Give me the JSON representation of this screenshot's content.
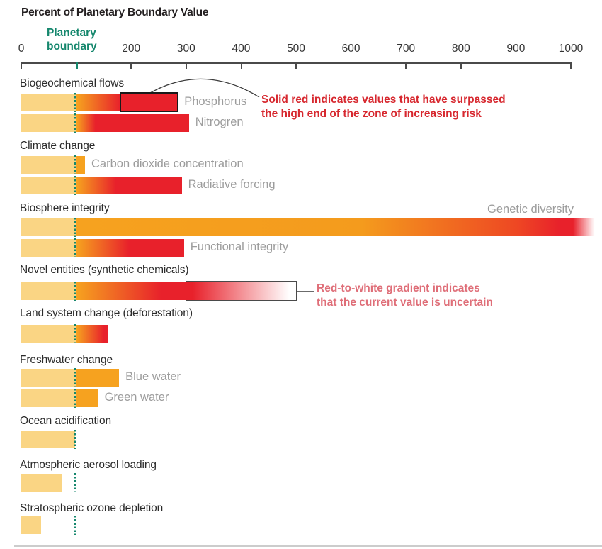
{
  "title": "Percent of Planetary Boundary Value",
  "axis": {
    "min": 0,
    "max": 1000,
    "boundary_value": 100,
    "boundary_label": "Planetary\nboundary",
    "boundary_color": "#15876D",
    "ticks": [
      {
        "value": 0,
        "label": "0"
      },
      {
        "value": 100,
        "label": ""
      },
      {
        "value": 200,
        "label": "200"
      },
      {
        "value": 300,
        "label": "300"
      },
      {
        "value": 400,
        "label": "400"
      },
      {
        "value": 500,
        "label": "500"
      },
      {
        "value": 600,
        "label": "600"
      },
      {
        "value": 700,
        "label": "700"
      },
      {
        "value": 800,
        "label": "800"
      },
      {
        "value": 900,
        "label": "900"
      },
      {
        "value": 1000,
        "label": "1000"
      }
    ]
  },
  "colors": {
    "safe_yellow": "#FAD584",
    "risk_orange": "#F6A21F",
    "surpass_red": "#E8212B",
    "uncertain_white": "#FFFFFF",
    "boundary_teal": "#15876D",
    "note_red": "#D7282F",
    "note_pink": "#DF6E78",
    "bar_label_gray": "#9C9C9C",
    "text_dark": "#2B2B2B"
  },
  "annotations": {
    "solid_red": {
      "lines": [
        "Solid red indicates values that have surpassed",
        "the high end of the zone of increasing risk"
      ],
      "color": "#D7282F"
    },
    "uncertain": {
      "lines": [
        "Red-to-white gradient indicates",
        "that the current value is uncertain"
      ],
      "color": "#DF6E78"
    }
  },
  "chart_data": {
    "type": "bar",
    "title": "Percent of Planetary Boundary Value",
    "xlabel": "Percent of planetary boundary value",
    "xlim": [
      0,
      1000
    ],
    "boundary_value": 100,
    "grid": false,
    "groups": [
      {
        "label": "Biogeochemical flows",
        "bars": [
          {
            "name": "Phosphorus",
            "value": 285,
            "solid_red_from": 180,
            "outlined": true,
            "stops": [
              [
                0,
                "#FAD584"
              ],
              [
                99,
                "#FAD584"
              ],
              [
                101,
                "#F6A21F"
              ],
              [
                180,
                "#E8212B"
              ],
              [
                285,
                "#E8212B"
              ]
            ]
          },
          {
            "name": "Nitrogren",
            "value": 305,
            "solid_red_from": 135,
            "stops": [
              [
                0,
                "#FAD584"
              ],
              [
                99,
                "#FAD584"
              ],
              [
                101,
                "#F6A21F"
              ],
              [
                135,
                "#E8212B"
              ],
              [
                305,
                "#E8212B"
              ]
            ]
          }
        ]
      },
      {
        "label": "Climate change",
        "bars": [
          {
            "name": "Carbon dioxide concentration",
            "value": 116,
            "stops": [
              [
                0,
                "#FAD584"
              ],
              [
                99,
                "#FAD584"
              ],
              [
                101,
                "#F6A21F"
              ],
              [
                116,
                "#F6A21F"
              ]
            ]
          },
          {
            "name": "Radiative forcing",
            "value": 292,
            "solid_red_from": 172,
            "stops": [
              [
                0,
                "#FAD584"
              ],
              [
                99,
                "#FAD584"
              ],
              [
                101,
                "#F6A21F"
              ],
              [
                172,
                "#E8212B"
              ],
              [
                292,
                "#E8212B"
              ]
            ]
          }
        ]
      },
      {
        "label": "Biosphere integrity",
        "bars": [
          {
            "name": "Genetic diversity",
            "value": 1045,
            "off_scale": true,
            "label_position": "above-right",
            "stops": [
              [
                0,
                "#FAD584"
              ],
              [
                99,
                "#FAD584"
              ],
              [
                101,
                "#F6A21F"
              ],
              [
                620,
                "#F49B1D"
              ],
              [
                900,
                "#EE4823"
              ],
              [
                980,
                "#E8212B"
              ],
              [
                1004,
                "#E8212B"
              ],
              [
                1043,
                "#FFFFFF"
              ]
            ]
          },
          {
            "name": "Functional integrity",
            "value": 296,
            "solid_red_from": 196,
            "stops": [
              [
                0,
                "#FAD584"
              ],
              [
                99,
                "#FAD584"
              ],
              [
                101,
                "#F6A21F"
              ],
              [
                196,
                "#E8212B"
              ],
              [
                296,
                "#E8212B"
              ]
            ]
          }
        ]
      },
      {
        "label": "Novel entities (synthetic chemicals)",
        "bars": [
          {
            "name": "",
            "value": 500,
            "uncertain_from": 300,
            "uncertain_to": 500,
            "stops": [
              [
                0,
                "#FAD584"
              ],
              [
                99,
                "#FAD584"
              ],
              [
                101,
                "#F6A21F"
              ],
              [
                255,
                "#E8212B"
              ],
              [
                312,
                "#E8212B"
              ],
              [
                488,
                "#FFFFFF"
              ],
              [
                500,
                "#FFFFFF"
              ]
            ]
          }
        ]
      },
      {
        "label": "Land system change (deforestation)",
        "bars": [
          {
            "name": "",
            "value": 158,
            "solid_red_from": 150,
            "stops": [
              [
                0,
                "#FAD584"
              ],
              [
                99,
                "#FAD584"
              ],
              [
                101,
                "#F6A21F"
              ],
              [
                150,
                "#E8212B"
              ],
              [
                158,
                "#E8212B"
              ]
            ]
          }
        ]
      },
      {
        "label": "Freshwater change",
        "bars": [
          {
            "name": "Blue water",
            "value": 178,
            "stops": [
              [
                0,
                "#FAD584"
              ],
              [
                99,
                "#FAD584"
              ],
              [
                101,
                "#F6A21F"
              ],
              [
                178,
                "#F6A21F"
              ]
            ]
          },
          {
            "name": "Green water",
            "value": 140,
            "stops": [
              [
                0,
                "#FAD584"
              ],
              [
                99,
                "#FAD584"
              ],
              [
                101,
                "#F6A21F"
              ],
              [
                140,
                "#F6A21F"
              ]
            ]
          }
        ]
      },
      {
        "label": "Ocean acidification",
        "bars": [
          {
            "name": "",
            "value": 98,
            "stops": [
              [
                0,
                "#FAD584"
              ],
              [
                98,
                "#FAD584"
              ]
            ]
          }
        ]
      },
      {
        "label": "Atmospheric aerosol loading",
        "bars": [
          {
            "name": "",
            "value": 75,
            "stops": [
              [
                0,
                "#FAD584"
              ],
              [
                75,
                "#FAD584"
              ]
            ]
          }
        ]
      },
      {
        "label": "Stratospheric ozone depletion",
        "bars": [
          {
            "name": "",
            "value": 36,
            "stops": [
              [
                0,
                "#FAD584"
              ],
              [
                36,
                "#FAD584"
              ]
            ]
          }
        ]
      }
    ]
  }
}
